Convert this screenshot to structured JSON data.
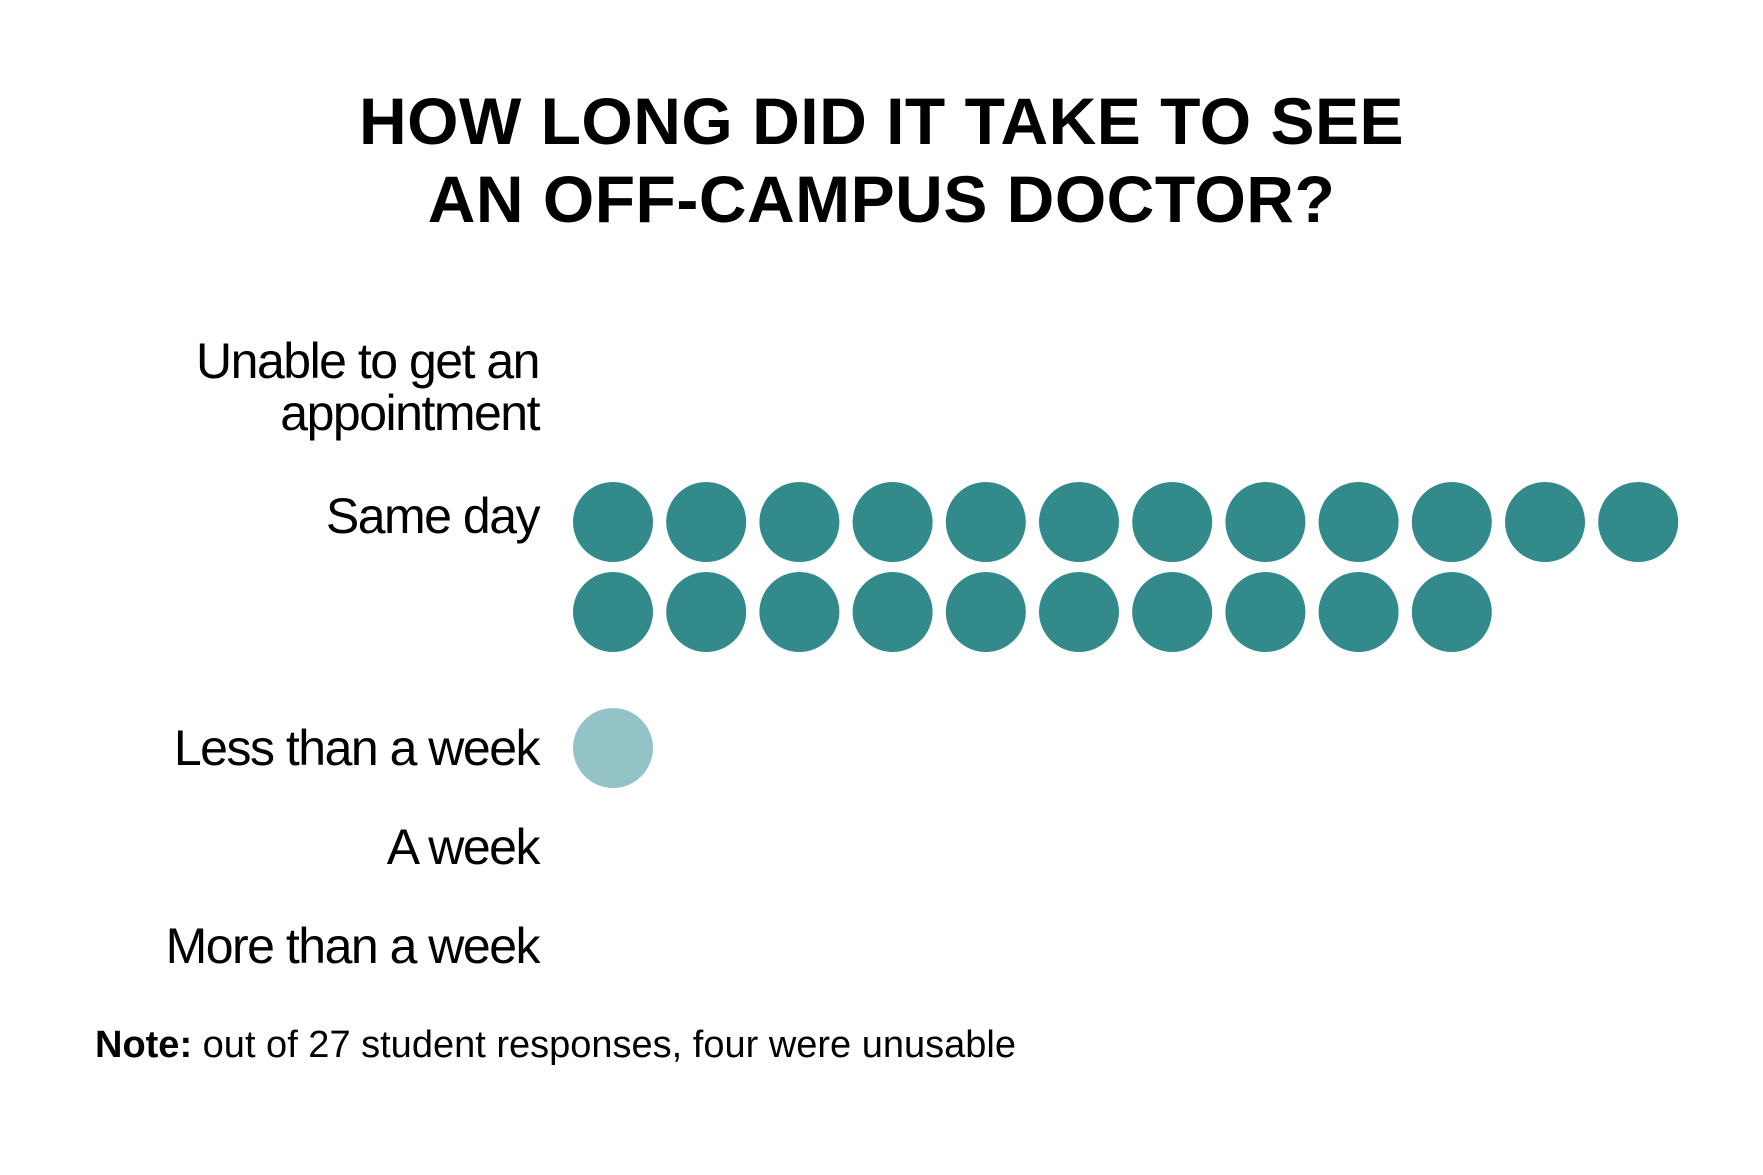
{
  "chart_data": {
    "type": "dot-plot",
    "title": [
      "HOW LONG DID IT TAKE TO SEE",
      "AN OFF-CAMPUS DOCTOR?"
    ],
    "categories": [
      [
        "Unable to get an",
        "appointment"
      ],
      [
        "Same day"
      ],
      [
        "Less than a week"
      ],
      [
        "A week"
      ],
      [
        "More than a week"
      ]
    ],
    "values": [
      0,
      22,
      1,
      0,
      0
    ],
    "colors": [
      "#338a8a",
      "#338a8a",
      "#94c3c7",
      "#338a8a",
      "#338a8a"
    ],
    "note_label": "Note:",
    "note_text": "out of 27 student responses, four were unusable"
  }
}
